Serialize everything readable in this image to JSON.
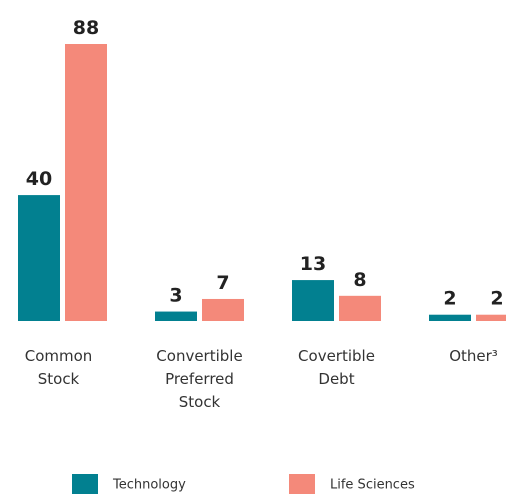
{
  "chart_data": {
    "type": "bar",
    "categories": [
      "Common Stock",
      "Convertible Preferred Stock",
      "Covertible Debt",
      "Other³"
    ],
    "series": [
      {
        "name": "Technology",
        "color": "#028090",
        "values": [
          40,
          3,
          13,
          2
        ]
      },
      {
        "name": "Life Sciences",
        "color": "#f4897a",
        "values": [
          88,
          7,
          8,
          2
        ]
      }
    ],
    "legend": "bottom"
  }
}
